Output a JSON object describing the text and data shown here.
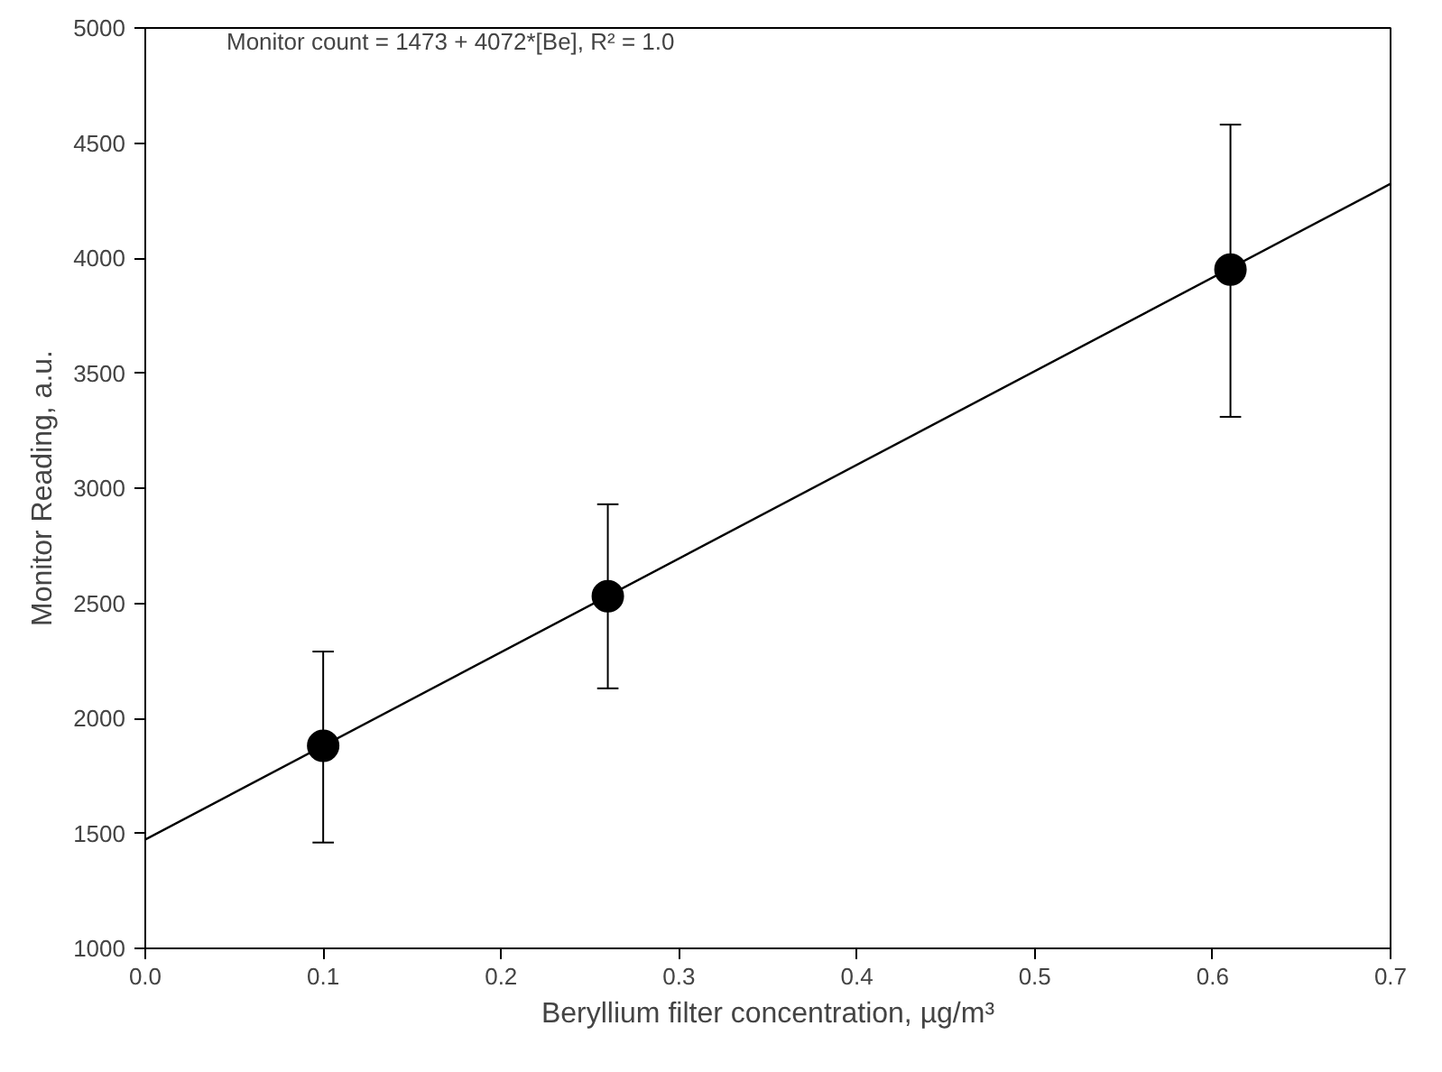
{
  "chart_data": {
    "type": "scatter",
    "xlabel": "Beryllium filter concentration, µg/m³",
    "ylabel": "Monitor Reading, a.u.",
    "annotations": [
      "Monitor count = 1473 + 4072*[Be], R² = 1.0"
    ],
    "series": [
      {
        "color": "#000000",
        "x": [
          0.1,
          0.26,
          0.61
        ],
        "values": [
          1880,
          2530,
          3950
        ],
        "errors": [
          [
            1460,
            2290
          ],
          [
            2130,
            2930
          ],
          [
            3310,
            4580
          ]
        ],
        "marker": "circle"
      },
      {
        "type": "line",
        "color": "#000000",
        "x": [
          0.0,
          0.7
        ],
        "values": [
          1473,
          4323
        ],
        "line_style": "solid"
      }
    ],
    "xlim": [
      0.0,
      0.7
    ],
    "ylim": [
      1000,
      5000
    ],
    "xticks": [
      {
        "value": 0.0,
        "label": "0.0"
      },
      0.1,
      0.2,
      0.3,
      0.4,
      0.5,
      0.6,
      0.7
    ],
    "yticks": [
      1000,
      1500,
      2000,
      2500,
      3000,
      3500,
      4000,
      4500,
      5000
    ],
    "grid": false
  }
}
